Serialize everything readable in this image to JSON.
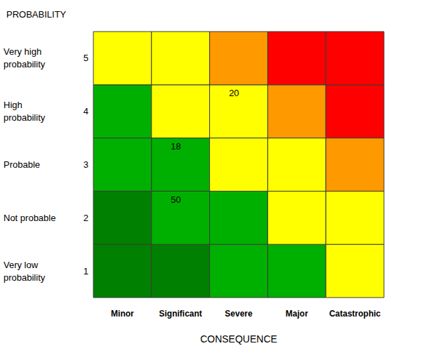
{
  "chart_data": {
    "type": "heatmap",
    "x_label": "CONSEQUENCE",
    "y_label": "PROBABILITY",
    "x": [
      "Minor",
      "Significant",
      "Severe",
      "Major",
      "Catastrophic"
    ],
    "y": [
      1,
      2,
      3,
      4,
      5
    ],
    "y_names": [
      "Very low probability",
      "Not probable",
      "Probable",
      "High probability",
      "Very high probability"
    ],
    "cells": [
      [
        null,
        null,
        null,
        null,
        null
      ],
      [
        null,
        50,
        null,
        null,
        null
      ],
      [
        null,
        18,
        null,
        null,
        null
      ],
      [
        null,
        null,
        20,
        null,
        null
      ],
      [
        null,
        null,
        null,
        null,
        null
      ]
    ],
    "colors": [
      [
        "#008000",
        "#008000",
        "#00b000",
        "#00b000",
        "#ffff00"
      ],
      [
        "#008000",
        "#00b000",
        "#00b000",
        "#ffff00",
        "#ffff00"
      ],
      [
        "#00b000",
        "#00b000",
        "#ffff00",
        "#ffff00",
        "#ff9900"
      ],
      [
        "#00b000",
        "#ffff00",
        "#ffff00",
        "#ff9900",
        "#ff0000"
      ],
      [
        "#ffff00",
        "#ffff00",
        "#ff9900",
        "#ff0000",
        "#ff0000"
      ]
    ]
  }
}
